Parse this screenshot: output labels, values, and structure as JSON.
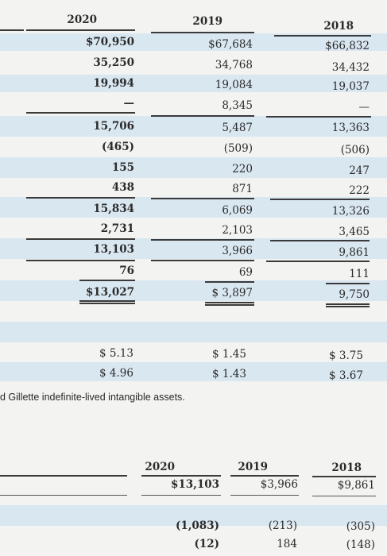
{
  "top_table": {
    "headers": [
      "2020",
      "2019",
      "2018"
    ],
    "rows": [
      [
        "$70,950",
        "$67,684",
        "$66,832"
      ],
      [
        "35,250",
        "34,768",
        "34,432"
      ],
      [
        "19,994",
        "19,084",
        "19,037"
      ],
      [
        "—",
        "8,345",
        "—"
      ],
      [
        "15,706",
        "5,487",
        "13,363"
      ],
      [
        "(465)",
        "(509)",
        "(506)"
      ],
      [
        "155",
        "220",
        "247"
      ],
      [
        "438",
        "871",
        "222"
      ],
      [
        "15,834",
        "6,069",
        "13,326"
      ],
      [
        "2,731",
        "2,103",
        "3,465"
      ],
      [
        "13,103",
        "3,966",
        "9,861"
      ],
      [
        "76",
        "69",
        "111"
      ],
      [
        "$13,027",
        "$ 3,897",
        "9,750"
      ]
    ]
  },
  "eps_table": {
    "rows": [
      [
        "$ 5.13",
        "$ 1.45",
        "$ 3.75"
      ],
      [
        "$ 4.96",
        "$ 1.43",
        "$ 3.67"
      ]
    ]
  },
  "footnote": "d Gillette indefinite-lived intangible assets.",
  "bottom_table": {
    "headers": [
      "2020",
      "2019",
      "2018"
    ],
    "rows": [
      [
        "$13,103",
        "$3,966",
        "$9,861"
      ],
      [
        "(1,083)",
        "(213)",
        "(305)"
      ],
      [
        "(12)",
        "184",
        "(148)"
      ]
    ]
  },
  "colors": {
    "band": "#d9e7f1",
    "page": "#f3f3f1",
    "rule": "#3a3a3a"
  }
}
